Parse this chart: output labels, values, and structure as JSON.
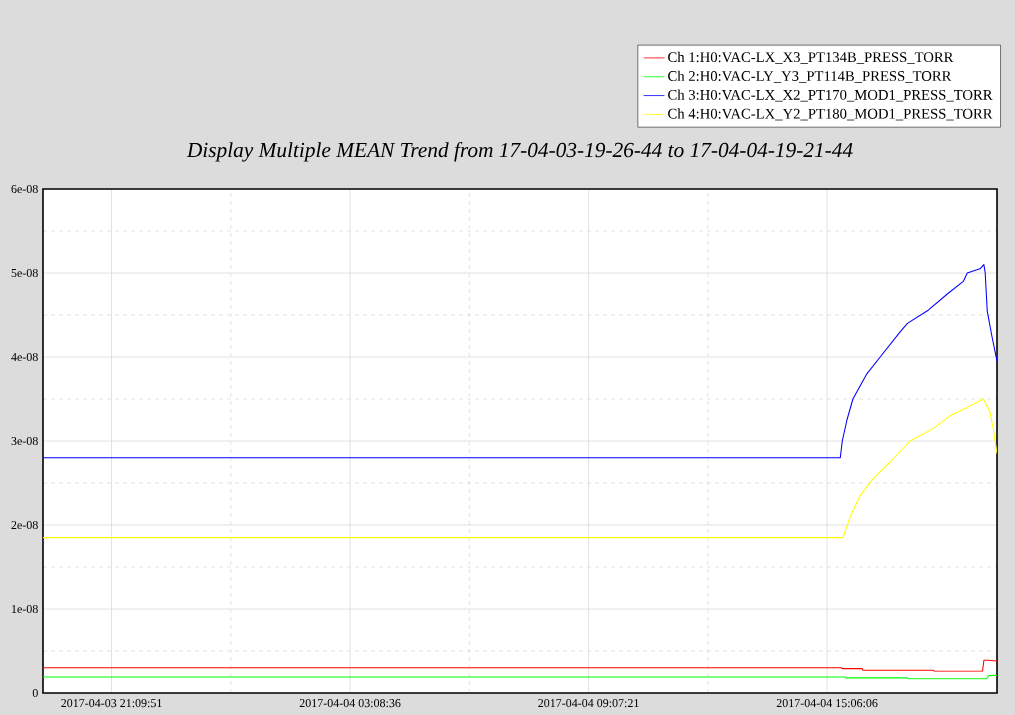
{
  "chart_data": {
    "type": "line",
    "title": "Display Multiple MEAN Trend from 17-04-03-19-26-44 to 17-04-04-19-21-44",
    "xlim": [
      "2017-04-03T19:26:44",
      "2017-04-04T19:21:44"
    ],
    "xticks": [
      {
        "value": "2017-04-03T21:09:51",
        "label": "2017-04-03 21:09:51"
      },
      {
        "value": "2017-04-04T03:08:36",
        "label": "2017-04-04 03:08:36"
      },
      {
        "value": "2017-04-04T09:07:21",
        "label": "2017-04-04 09:07:21"
      },
      {
        "value": "2017-04-04T15:06:06",
        "label": "2017-04-04 15:06:06"
      }
    ],
    "ylim": [
      0,
      6e-08
    ],
    "yticks": [
      0,
      {
        "value": 1e-08,
        "label": "1e-08"
      },
      {
        "value": 2e-08,
        "label": "2e-08"
      },
      {
        "value": 3e-08,
        "label": "3e-08"
      },
      {
        "value": 4e-08,
        "label": "4e-08"
      },
      {
        "value": 5e-08,
        "label": "5e-08"
      },
      {
        "value": 6e-08,
        "label": "6e-08"
      }
    ],
    "grid": true,
    "legend": "top right",
    "series": [
      {
        "name": "Ch 1:H0:VAC-LX_X3_PT134B_PRESS_TORR",
        "color": "#ff0000",
        "x": [
          "2017-04-03T19:26:44",
          "2017-04-04T15:28",
          "2017-04-04T15:29",
          "2017-04-04T15:59",
          "2017-04-04T16:00",
          "2017-04-04T17:46",
          "2017-04-04T17:47",
          "2017-04-04T19:00",
          "2017-04-04T19:02",
          "2017-04-04T19:09",
          "2017-04-04T19:21:44"
        ],
        "values": [
          3e-09,
          3e-09,
          2.9e-09,
          2.9e-09,
          2.7e-09,
          2.7e-09,
          2.6e-09,
          2.6e-09,
          3.9e-09,
          3.9e-09,
          3.8e-09
        ]
      },
      {
        "name": "Ch 2:H0:VAC-LY_Y3_PT114B_PRESS_TORR",
        "color": "#00ff00",
        "x": [
          "2017-04-03T19:26:44",
          "2017-04-04T15:33",
          "2017-04-04T15:34",
          "2017-04-04T17:07",
          "2017-04-04T17:08",
          "2017-04-04T19:06",
          "2017-04-04T19:10",
          "2017-04-04T19:21:44"
        ],
        "values": [
          1.9e-09,
          1.9e-09,
          1.8e-09,
          1.8e-09,
          1.7e-09,
          1.7e-09,
          2.1e-09,
          2.1e-09
        ]
      },
      {
        "name": "Ch 3:H0:VAC-LX_X2_PT170_MOD1_PRESS_TORR",
        "color": "#0000ff",
        "x": [
          "2017-04-03T19:26:44",
          "2017-04-04T15:26",
          "2017-04-04T15:29",
          "2017-04-04T15:36",
          "2017-04-04T15:45",
          "2017-04-04T16:06",
          "2017-04-04T16:26",
          "2017-04-04T16:56",
          "2017-04-04T17:07",
          "2017-04-04T17:37",
          "2017-04-04T18:07",
          "2017-04-04T18:31",
          "2017-04-04T18:37",
          "2017-04-04T18:56",
          "2017-04-04T19:02",
          "2017-04-04T19:04",
          "2017-04-04T19:07",
          "2017-04-04T19:14",
          "2017-04-04T19:21:44"
        ],
        "values": [
          2.8e-08,
          2.8e-08,
          3e-08,
          3.25e-08,
          3.5e-08,
          3.8e-08,
          4e-08,
          4.3e-08,
          4.4e-08,
          4.55e-08,
          4.75e-08,
          4.9e-08,
          5e-08,
          5.05e-08,
          5.1e-08,
          5e-08,
          4.55e-08,
          4.25e-08,
          3.95e-08
        ]
      },
      {
        "name": "Ch 4:H0:VAC-LX_Y2_PT180_MOD1_PRESS_TORR",
        "color": "#ffff00",
        "x": [
          "2017-04-03T19:26:44",
          "2017-04-04T15:30",
          "2017-04-04T15:41",
          "2017-04-04T15:56",
          "2017-04-04T16:15",
          "2017-04-04T16:41",
          "2017-04-04T17:11",
          "2017-04-04T17:46",
          "2017-04-04T18:11",
          "2017-04-04T18:37",
          "2017-04-04T19:01",
          "2017-04-04T19:11",
          "2017-04-04T19:16",
          "2017-04-04T19:21:44"
        ],
        "values": [
          1.85e-08,
          1.85e-08,
          2.1e-08,
          2.35e-08,
          2.55e-08,
          2.75e-08,
          3e-08,
          3.15e-08,
          3.3e-08,
          3.4e-08,
          3.5e-08,
          3.35e-08,
          3.15e-08,
          2.85e-08
        ]
      }
    ]
  }
}
